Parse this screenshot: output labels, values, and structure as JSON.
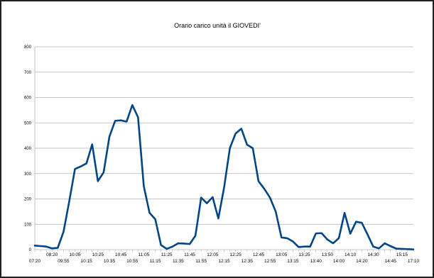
{
  "chart_data": {
    "type": "line",
    "title": "Orario carico unità il GIOVEDI'",
    "xlabel": "",
    "ylabel": "",
    "ylim": [
      0,
      800
    ],
    "yticks": [
      0,
      100,
      200,
      300,
      400,
      500,
      600,
      700,
      800
    ],
    "grid": "horizontal",
    "legend": "none",
    "line_color": "#004586",
    "x": [
      "07:20",
      "07:30",
      "07:40",
      "08:20",
      "08:30",
      "09:55",
      "10:00",
      "10:05",
      "10:10",
      "10:15",
      "10:20",
      "10:25",
      "10:30",
      "10:35",
      "10:40",
      "10:45",
      "10:50",
      "10:55",
      "11:00",
      "11:05",
      "11:10",
      "11:15",
      "11:20",
      "11:25",
      "11:30",
      "11:35",
      "11:40",
      "11:45",
      "11:50",
      "11:55",
      "12:00",
      "12:05",
      "12:10",
      "12:15",
      "12:20",
      "12:25",
      "12:30",
      "12:35",
      "12:40",
      "12:45",
      "12:50",
      "12:55",
      "13:00",
      "13:05",
      "13:10",
      "13:15",
      "13:20",
      "13:25",
      "13:30",
      "13:40",
      "13:45",
      "13:50",
      "13:55",
      "14:00",
      "14:05",
      "14:10",
      "14:15",
      "14:20",
      "14:25",
      "14:30",
      "14:35",
      "14:40",
      "14:45",
      "15:10",
      "15:15",
      "15:20",
      "17:10"
    ],
    "x_tick_labels_top": [
      "08:20",
      "10:05",
      "10:25",
      "10:45",
      "11:05",
      "11:25",
      "11:45",
      "12:05",
      "12:25",
      "12:45",
      "13:05",
      "13:25",
      "13:50",
      "14:10",
      "14:30",
      "15:15"
    ],
    "x_tick_labels_bottom": [
      "07:20",
      "09:55",
      "10:15",
      "10:35",
      "10:55",
      "11:15",
      "11:35",
      "11:55",
      "12:15",
      "12:35",
      "12:55",
      "13:15",
      "13:40",
      "14:00",
      "14:20",
      "14:45",
      "17:10"
    ],
    "values": [
      16,
      14,
      12,
      5,
      7,
      70,
      190,
      318,
      328,
      340,
      415,
      270,
      305,
      445,
      508,
      510,
      505,
      570,
      522,
      250,
      145,
      120,
      18,
      3,
      12,
      25,
      24,
      22,
      55,
      205,
      183,
      207,
      123,
      245,
      400,
      458,
      477,
      414,
      400,
      270,
      240,
      205,
      150,
      48,
      45,
      32,
      10,
      12,
      12,
      64,
      65,
      40,
      25,
      45,
      145,
      63,
      110,
      106,
      60,
      12,
      5,
      25,
      14,
      4,
      3,
      2,
      1
    ]
  }
}
